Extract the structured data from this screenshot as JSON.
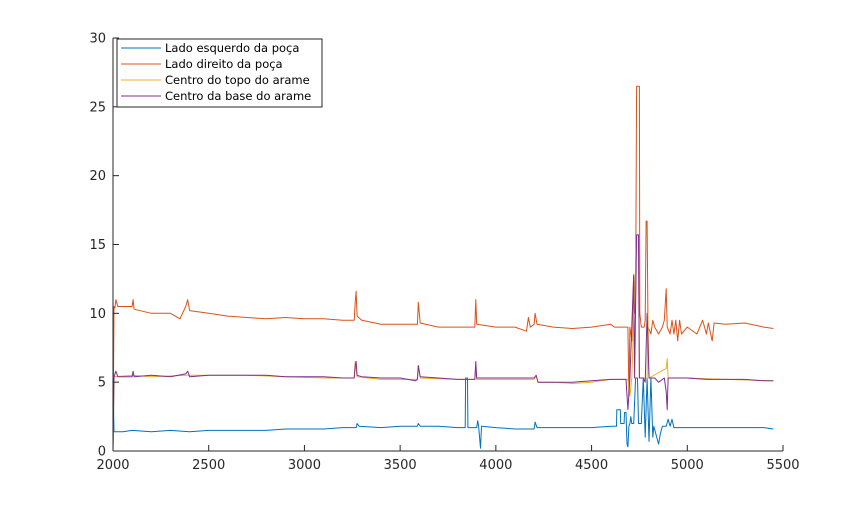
{
  "chart_data": {
    "type": "line",
    "xlim": [
      2000,
      5500
    ],
    "ylim": [
      0,
      30
    ],
    "x_ticks": [
      2000,
      2500,
      3000,
      3500,
      4000,
      4500,
      5000,
      5500
    ],
    "y_ticks": [
      0,
      5,
      10,
      15,
      20,
      25,
      30
    ],
    "grid": false,
    "legend_position": "top-left",
    "series": [
      {
        "name": "Lado esquerdo da poça",
        "color": "#0072BD",
        "points": [
          [
            2000,
            5.2
          ],
          [
            2005,
            1.4
          ],
          [
            2050,
            1.4
          ],
          [
            2100,
            1.5
          ],
          [
            2200,
            1.4
          ],
          [
            2300,
            1.5
          ],
          [
            2400,
            1.4
          ],
          [
            2500,
            1.5
          ],
          [
            2600,
            1.5
          ],
          [
            2700,
            1.5
          ],
          [
            2800,
            1.5
          ],
          [
            2900,
            1.6
          ],
          [
            3000,
            1.6
          ],
          [
            3100,
            1.6
          ],
          [
            3200,
            1.7
          ],
          [
            3270,
            1.7
          ],
          [
            3275,
            2.0
          ],
          [
            3285,
            1.8
          ],
          [
            3400,
            1.7
          ],
          [
            3500,
            1.8
          ],
          [
            3590,
            1.8
          ],
          [
            3595,
            2.0
          ],
          [
            3605,
            1.8
          ],
          [
            3700,
            1.8
          ],
          [
            3800,
            1.7
          ],
          [
            3840,
            1.7
          ],
          [
            3842,
            5.3
          ],
          [
            3852,
            5.3
          ],
          [
            3854,
            1.7
          ],
          [
            3900,
            1.7
          ],
          [
            3905,
            2.2
          ],
          [
            3910,
            1.8
          ],
          [
            3920,
            0.2
          ],
          [
            3925,
            1.8
          ],
          [
            4000,
            1.7
          ],
          [
            4100,
            1.6
          ],
          [
            4200,
            1.6
          ],
          [
            4205,
            2.1
          ],
          [
            4215,
            1.7
          ],
          [
            4300,
            1.7
          ],
          [
            4400,
            1.7
          ],
          [
            4500,
            1.7
          ],
          [
            4600,
            1.8
          ],
          [
            4630,
            1.8
          ],
          [
            4632,
            3.0
          ],
          [
            4650,
            3.0
          ],
          [
            4652,
            2.0
          ],
          [
            4670,
            2.0
          ],
          [
            4672,
            2.8
          ],
          [
            4680,
            2.8
          ],
          [
            4685,
            0.5
          ],
          [
            4690,
            0.3
          ],
          [
            4695,
            1.8
          ],
          [
            4700,
            2.0
          ],
          [
            4705,
            2.5
          ],
          [
            4710,
            2.0
          ],
          [
            4720,
            2.0
          ],
          [
            4730,
            5.3
          ],
          [
            4740,
            5.3
          ],
          [
            4745,
            2.0
          ],
          [
            4760,
            2.0
          ],
          [
            4770,
            5.3
          ],
          [
            4780,
            1.0
          ],
          [
            4790,
            5.3
          ],
          [
            4800,
            0.7
          ],
          [
            4810,
            5.3
          ],
          [
            4820,
            1.0
          ],
          [
            4825,
            1.8
          ],
          [
            4850,
            0.5
          ],
          [
            4860,
            1.3
          ],
          [
            4870,
            1.8
          ],
          [
            4890,
            1.8
          ],
          [
            4900,
            2.3
          ],
          [
            4910,
            1.8
          ],
          [
            4920,
            2.3
          ],
          [
            4930,
            1.7
          ],
          [
            5000,
            1.7
          ],
          [
            5100,
            1.7
          ],
          [
            5200,
            1.7
          ],
          [
            5300,
            1.7
          ],
          [
            5400,
            1.7
          ],
          [
            5450,
            1.6
          ]
        ]
      },
      {
        "name": "Lado direito da poça",
        "color": "#D95319",
        "points": [
          [
            2000,
            0.0
          ],
          [
            2005,
            10.5
          ],
          [
            2010,
            10.4
          ],
          [
            2015,
            11.0
          ],
          [
            2025,
            10.5
          ],
          [
            2100,
            10.5
          ],
          [
            2105,
            11.0
          ],
          [
            2110,
            10.3
          ],
          [
            2200,
            10.0
          ],
          [
            2300,
            10.0
          ],
          [
            2350,
            9.6
          ],
          [
            2380,
            10.5
          ],
          [
            2390,
            11.0
          ],
          [
            2400,
            10.2
          ],
          [
            2500,
            10.0
          ],
          [
            2600,
            9.8
          ],
          [
            2700,
            9.7
          ],
          [
            2800,
            9.6
          ],
          [
            2900,
            9.7
          ],
          [
            3000,
            9.6
          ],
          [
            3100,
            9.6
          ],
          [
            3200,
            9.5
          ],
          [
            3260,
            9.5
          ],
          [
            3265,
            10.8
          ],
          [
            3270,
            11.6
          ],
          [
            3275,
            9.8
          ],
          [
            3300,
            9.5
          ],
          [
            3400,
            9.2
          ],
          [
            3500,
            9.2
          ],
          [
            3590,
            9.2
          ],
          [
            3595,
            10.8
          ],
          [
            3605,
            9.3
          ],
          [
            3700,
            9.0
          ],
          [
            3800,
            9.0
          ],
          [
            3890,
            9.0
          ],
          [
            3895,
            11.0
          ],
          [
            3900,
            9.2
          ],
          [
            4000,
            9.0
          ],
          [
            4100,
            9.0
          ],
          [
            4160,
            8.7
          ],
          [
            4170,
            9.7
          ],
          [
            4180,
            9.0
          ],
          [
            4200,
            9.2
          ],
          [
            4205,
            10.0
          ],
          [
            4215,
            9.2
          ],
          [
            4300,
            9.0
          ],
          [
            4400,
            8.9
          ],
          [
            4500,
            9.0
          ],
          [
            4600,
            9.2
          ],
          [
            4620,
            9.0
          ],
          [
            4690,
            9.0
          ],
          [
            4695,
            4.0
          ],
          [
            4700,
            9.0
          ],
          [
            4710,
            8.0
          ],
          [
            4720,
            12.7
          ],
          [
            4725,
            10.0
          ],
          [
            4730,
            11.0
          ],
          [
            4735,
            26.5
          ],
          [
            4750,
            26.5
          ],
          [
            4752,
            10.0
          ],
          [
            4760,
            9.0
          ],
          [
            4775,
            9.0
          ],
          [
            4780,
            9.5
          ],
          [
            4785,
            16.7
          ],
          [
            4790,
            16.7
          ],
          [
            4795,
            9.0
          ],
          [
            4810,
            8.5
          ],
          [
            4820,
            9.5
          ],
          [
            4830,
            9.0
          ],
          [
            4850,
            8.5
          ],
          [
            4870,
            9.0
          ],
          [
            4880,
            9.5
          ],
          [
            4890,
            11.8
          ],
          [
            4895,
            9.0
          ],
          [
            4910,
            8.5
          ],
          [
            4920,
            9.5
          ],
          [
            4930,
            8.5
          ],
          [
            4940,
            9.5
          ],
          [
            4950,
            8.0
          ],
          [
            4960,
            9.5
          ],
          [
            4970,
            8.5
          ],
          [
            5000,
            9.0
          ],
          [
            5050,
            8.5
          ],
          [
            5080,
            9.5
          ],
          [
            5100,
            8.5
          ],
          [
            5110,
            9.3
          ],
          [
            5130,
            8.0
          ],
          [
            5140,
            9.3
          ],
          [
            5200,
            9.2
          ],
          [
            5300,
            9.3
          ],
          [
            5400,
            9.0
          ],
          [
            5450,
            8.9
          ]
        ]
      },
      {
        "name": "Centro do topo do arame",
        "color": "#EDB120",
        "points": [
          [
            2000,
            0.0
          ],
          [
            2005,
            5.4
          ],
          [
            2100,
            5.5
          ],
          [
            2200,
            5.4
          ],
          [
            2380,
            5.5
          ],
          [
            2500,
            5.5
          ],
          [
            2700,
            5.5
          ],
          [
            2900,
            5.4
          ],
          [
            3100,
            5.3
          ],
          [
            3260,
            5.3
          ],
          [
            3265,
            6.5
          ],
          [
            3275,
            5.4
          ],
          [
            3400,
            5.2
          ],
          [
            3590,
            5.2
          ],
          [
            3595,
            6.2
          ],
          [
            3605,
            5.3
          ],
          [
            3800,
            5.2
          ],
          [
            3890,
            5.2
          ],
          [
            3895,
            6.0
          ],
          [
            3900,
            5.2
          ],
          [
            4000,
            5.2
          ],
          [
            4200,
            5.2
          ],
          [
            4210,
            5.5
          ],
          [
            4220,
            5.0
          ],
          [
            4300,
            5.0
          ],
          [
            4400,
            4.9
          ],
          [
            4500,
            5.0
          ],
          [
            4600,
            5.2
          ],
          [
            4690,
            5.2
          ],
          [
            4700,
            4.0
          ],
          [
            4710,
            5.3
          ],
          [
            4735,
            15.7
          ],
          [
            4745,
            15.7
          ],
          [
            4750,
            5.3
          ],
          [
            4790,
            5.3
          ],
          [
            4795,
            10.0
          ],
          [
            4800,
            5.3
          ],
          [
            4890,
            6.0
          ],
          [
            4895,
            6.7
          ],
          [
            4900,
            5.3
          ],
          [
            5000,
            5.3
          ],
          [
            5200,
            5.2
          ],
          [
            5450,
            5.1
          ]
        ]
      },
      {
        "name": "Centro da base do arame",
        "color": "#7E2F8E",
        "points": [
          [
            2000,
            0.0
          ],
          [
            2005,
            5.3
          ],
          [
            2010,
            5.6
          ],
          [
            2015,
            5.8
          ],
          [
            2025,
            5.4
          ],
          [
            2100,
            5.4
          ],
          [
            2105,
            5.8
          ],
          [
            2110,
            5.4
          ],
          [
            2200,
            5.5
          ],
          [
            2300,
            5.4
          ],
          [
            2380,
            5.6
          ],
          [
            2390,
            5.8
          ],
          [
            2400,
            5.4
          ],
          [
            2500,
            5.5
          ],
          [
            2600,
            5.5
          ],
          [
            2700,
            5.5
          ],
          [
            2800,
            5.5
          ],
          [
            2900,
            5.4
          ],
          [
            3000,
            5.4
          ],
          [
            3100,
            5.4
          ],
          [
            3200,
            5.3
          ],
          [
            3260,
            5.3
          ],
          [
            3265,
            6.2
          ],
          [
            3270,
            6.5
          ],
          [
            3275,
            5.5
          ],
          [
            3300,
            5.4
          ],
          [
            3400,
            5.3
          ],
          [
            3500,
            5.3
          ],
          [
            3580,
            5.1
          ],
          [
            3590,
            5.2
          ],
          [
            3595,
            6.2
          ],
          [
            3605,
            5.4
          ],
          [
            3700,
            5.3
          ],
          [
            3800,
            5.2
          ],
          [
            3890,
            5.2
          ],
          [
            3895,
            6.5
          ],
          [
            3900,
            5.3
          ],
          [
            4000,
            5.3
          ],
          [
            4100,
            5.3
          ],
          [
            4200,
            5.3
          ],
          [
            4210,
            5.5
          ],
          [
            4220,
            5.0
          ],
          [
            4300,
            5.0
          ],
          [
            4400,
            5.0
          ],
          [
            4500,
            5.1
          ],
          [
            4600,
            5.2
          ],
          [
            4680,
            5.2
          ],
          [
            4690,
            3.0
          ],
          [
            4700,
            5.3
          ],
          [
            4720,
            12.8
          ],
          [
            4725,
            5.3
          ],
          [
            4735,
            15.7
          ],
          [
            4745,
            15.7
          ],
          [
            4750,
            5.3
          ],
          [
            4770,
            5.3
          ],
          [
            4780,
            5.0
          ],
          [
            4790,
            10.0
          ],
          [
            4800,
            5.3
          ],
          [
            4830,
            5.3
          ],
          [
            4850,
            5.0
          ],
          [
            4880,
            5.3
          ],
          [
            4890,
            4.3
          ],
          [
            4895,
            3.0
          ],
          [
            4900,
            5.3
          ],
          [
            5000,
            5.3
          ],
          [
            5100,
            5.2
          ],
          [
            5200,
            5.2
          ],
          [
            5300,
            5.2
          ],
          [
            5400,
            5.1
          ],
          [
            5450,
            5.1
          ]
        ]
      }
    ]
  }
}
